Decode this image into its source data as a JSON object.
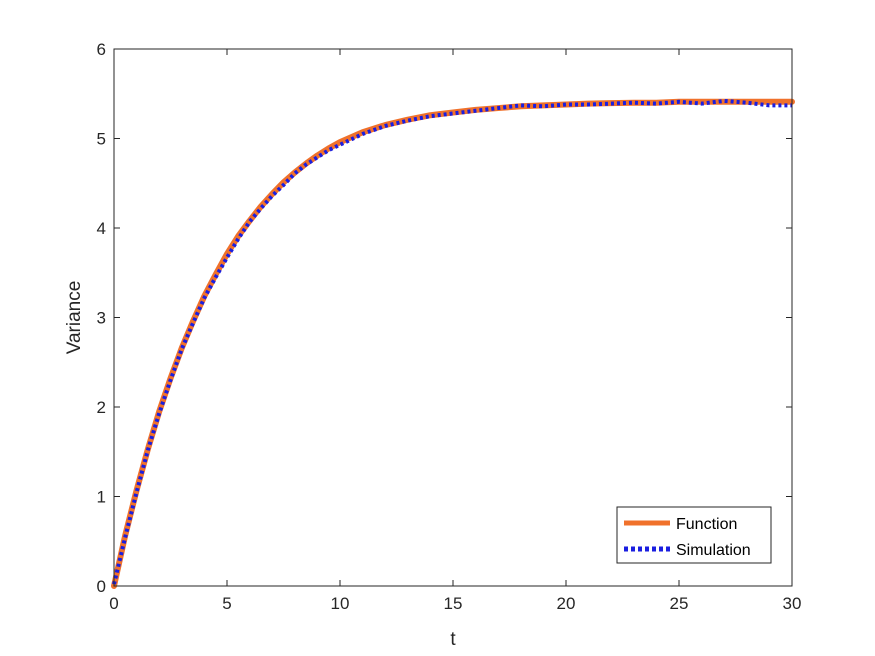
{
  "chart_data": {
    "type": "line",
    "title": "",
    "xlabel": "t",
    "ylabel": "Variance",
    "xlim": [
      0,
      30
    ],
    "ylim": [
      0,
      6
    ],
    "xticks": [
      0,
      5,
      10,
      15,
      20,
      25,
      30
    ],
    "yticks": [
      0,
      1,
      2,
      3,
      4,
      5,
      6
    ],
    "grid": false,
    "legend_position": "bottom-right",
    "series": [
      {
        "name": "Function",
        "color": "#f0712b",
        "style": "solid",
        "x": [
          0,
          0.5,
          1,
          1.5,
          2,
          2.5,
          3,
          3.5,
          4,
          4.5,
          5,
          5.5,
          6,
          6.5,
          7,
          7.5,
          8,
          8.5,
          9,
          9.5,
          10,
          11,
          12,
          13,
          14,
          15,
          16,
          17,
          18,
          19,
          20,
          21,
          22,
          23,
          24,
          25,
          26,
          27,
          28,
          29,
          30
        ],
        "y": [
          0,
          0.57,
          1.07,
          1.53,
          1.95,
          2.32,
          2.66,
          2.96,
          3.24,
          3.48,
          3.71,
          3.91,
          4.08,
          4.24,
          4.38,
          4.51,
          4.62,
          4.72,
          4.81,
          4.89,
          4.96,
          5.07,
          5.15,
          5.21,
          5.26,
          5.29,
          5.32,
          5.34,
          5.36,
          5.37,
          5.38,
          5.39,
          5.395,
          5.4,
          5.4,
          5.41,
          5.41,
          5.41,
          5.41,
          5.41,
          5.41
        ]
      },
      {
        "name": "Simulation",
        "color": "#1a1ee0",
        "style": "dotted",
        "x": [
          0,
          0.5,
          1,
          1.5,
          2,
          2.5,
          3,
          3.5,
          4,
          4.5,
          5,
          5.5,
          6,
          6.5,
          7,
          7.5,
          8,
          8.5,
          9,
          9.5,
          10,
          11,
          12,
          13,
          14,
          15,
          16,
          17,
          18,
          19,
          20,
          21,
          22,
          23,
          24,
          25,
          26,
          27,
          28,
          29,
          30
        ],
        "y": [
          0.02,
          0.55,
          1.05,
          1.52,
          1.93,
          2.3,
          2.65,
          2.94,
          3.22,
          3.45,
          3.67,
          3.88,
          4.07,
          4.22,
          4.36,
          4.48,
          4.61,
          4.71,
          4.79,
          4.87,
          4.93,
          5.05,
          5.14,
          5.2,
          5.25,
          5.28,
          5.31,
          5.34,
          5.37,
          5.36,
          5.38,
          5.38,
          5.39,
          5.4,
          5.39,
          5.41,
          5.39,
          5.42,
          5.4,
          5.37,
          5.37
        ]
      }
    ]
  }
}
